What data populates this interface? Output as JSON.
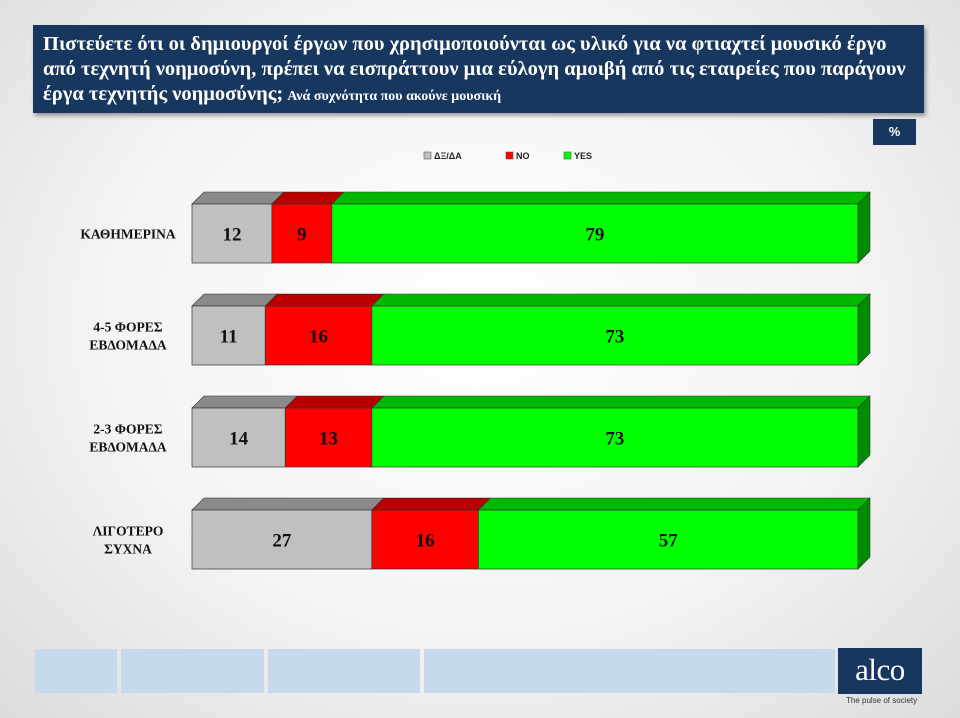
{
  "slide": {
    "title": "Πιστεύετε ότι οι δημιουργοί έργων που χρησιμοποιούνται ως υλικό για να φτιαχτεί μουσικό έργο από τεχνητή νοημοσύνη,  πρέπει να εισπράττουν μια εύλογη αμοιβή από τις εταιρείες που παράγουν έργα τεχνητής νοημοσύνης;",
    "subtitle": "Ανά συχνότητα που ακούνε μουσική",
    "percent_badge": "%",
    "logo": "alco",
    "tagline": "The pulse of society"
  },
  "colors": {
    "title_bg": "#17375e",
    "dk_na": "#c0c0c0",
    "no": "#ff0000",
    "yes": "#00ff00",
    "footer_strip": "#b8cfe6"
  },
  "chart_data": {
    "type": "bar",
    "orientation": "horizontal",
    "stacked": true,
    "categories": [
      [
        "ΚΑΘΗΜΕΡΙΝΑ"
      ],
      [
        "4-5 ΦΟΡΕΣ",
        "ΕΒΔΟΜΑΔΑ"
      ],
      [
        "2-3 ΦΟΡΕΣ",
        "ΕΒΔΟΜΑΔΑ"
      ],
      [
        "ΛΙΓΟΤΕΡΟ",
        "ΣΥΧΝΑ"
      ]
    ],
    "series": [
      {
        "name": "ΔΞ/ΔΑ",
        "color": "#c0c0c0",
        "values": [
          12,
          11,
          14,
          27
        ]
      },
      {
        "name": "NO",
        "color": "#ff0000",
        "values": [
          9,
          16,
          13,
          16
        ]
      },
      {
        "name": "YES",
        "color": "#00ff00",
        "values": [
          79,
          73,
          73,
          57
        ]
      }
    ],
    "xlim": [
      0,
      100
    ],
    "legend_position": "top-center",
    "grid": false,
    "data_labels": true
  }
}
